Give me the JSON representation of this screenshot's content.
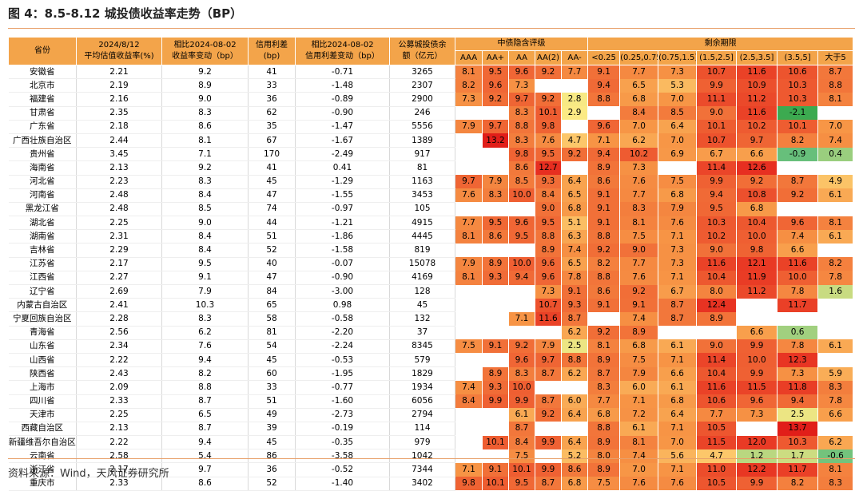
{
  "title": "图 4：8.5-8.12 城投债收益率走势（BP）",
  "source": "资料来源：Wind，天风证券研究所",
  "header": {
    "province": "省份",
    "avg_line1": "2024/8/12",
    "avg_line2": "平均估值收益率(%)",
    "chg_line1": "相比2024-08-02",
    "chg_line2": "收益率变动（bp）",
    "spread_line1": "信用利差",
    "spread_line2": "(bp)",
    "spread_chg_line1": "相比2024-08-02",
    "spread_chg_line2": "信用利差变动（bp）",
    "balance_line1": "公募城投债余",
    "balance_line2": "额（亿元）",
    "rating_group": "中债隐含评级",
    "rating_cols": [
      "AAA",
      "AA+",
      "AA",
      "AA(2)",
      "AA-"
    ],
    "term_group": "剩余期限",
    "term_cols": [
      "<0.25",
      "(0.25,0.75]",
      "(0.75,1.5]",
      "(1.5,2.5]",
      "(2.5,3.5]",
      "(3.5,5]",
      "大于5"
    ]
  },
  "rows": [
    {
      "province": "安徽省",
      "avg": "2.21",
      "chg": "9.2",
      "spread": "41",
      "spread_chg": "-0.71",
      "balance": "3265",
      "rating": [
        "8.1",
        "9.5",
        "9.6",
        "9.2",
        "7.7"
      ],
      "term": [
        "9.1",
        "7.7",
        "7.3",
        "10.7",
        "11.6",
        "10.6",
        "8.7"
      ]
    },
    {
      "province": "北京市",
      "avg": "2.19",
      "chg": "8.9",
      "spread": "33",
      "spread_chg": "-1.48",
      "balance": "2307",
      "rating": [
        "8.2",
        "9.6",
        "7.3",
        "",
        ""
      ],
      "term": [
        "9.4",
        "6.5",
        "5.3",
        "9.9",
        "10.9",
        "10.3",
        "8.8"
      ]
    },
    {
      "province": "福建省",
      "avg": "2.16",
      "chg": "9.0",
      "spread": "36",
      "spread_chg": "-0.89",
      "balance": "2900",
      "rating": [
        "7.3",
        "9.2",
        "9.7",
        "9.2",
        "2.8"
      ],
      "term": [
        "8.8",
        "6.8",
        "7.0",
        "11.1",
        "11.2",
        "10.3",
        "8.1"
      ]
    },
    {
      "province": "甘肃省",
      "avg": "2.35",
      "chg": "8.3",
      "spread": "62",
      "spread_chg": "-0.90",
      "balance": "246",
      "rating": [
        "",
        "",
        "8.3",
        "10.1",
        "2.9"
      ],
      "term": [
        "",
        "8.4",
        "8.5",
        "9.0",
        "11.6",
        "-2.1",
        ""
      ]
    },
    {
      "province": "广东省",
      "avg": "2.18",
      "chg": "8.6",
      "spread": "35",
      "spread_chg": "-1.47",
      "balance": "5556",
      "rating": [
        "7.9",
        "9.7",
        "8.8",
        "9.8",
        ""
      ],
      "term": [
        "9.6",
        "7.0",
        "6.4",
        "10.1",
        "10.2",
        "10.1",
        "7.0"
      ]
    },
    {
      "province": "广西壮族自治区",
      "avg": "2.44",
      "chg": "8.1",
      "spread": "67",
      "spread_chg": "-1.67",
      "balance": "1389",
      "rating": [
        "",
        "13.2",
        "8.3",
        "7.6",
        "4.7"
      ],
      "term": [
        "7.1",
        "6.2",
        "7.0",
        "10.7",
        "9.7",
        "8.2",
        "7.4"
      ]
    },
    {
      "province": "贵州省",
      "avg": "3.45",
      "chg": "7.1",
      "spread": "170",
      "spread_chg": "-2.49",
      "balance": "917",
      "rating": [
        "",
        "",
        "9.8",
        "9.5",
        "9.2"
      ],
      "term": [
        "9.4",
        "10.2",
        "6.9",
        "6.7",
        "6.6",
        "-0.9",
        "0.4"
      ]
    },
    {
      "province": "海南省",
      "avg": "2.13",
      "chg": "9.2",
      "spread": "41",
      "spread_chg": "0.41",
      "balance": "81",
      "rating": [
        "",
        "",
        "8.6",
        "12.7",
        ""
      ],
      "term": [
        "8.9",
        "7.3",
        "",
        "11.4",
        "12.6",
        "",
        ""
      ]
    },
    {
      "province": "河北省",
      "avg": "2.23",
      "chg": "8.3",
      "spread": "45",
      "spread_chg": "-1.29",
      "balance": "1163",
      "rating": [
        "9.7",
        "7.9",
        "8.5",
        "9.3",
        "6.4"
      ],
      "term": [
        "8.6",
        "7.6",
        "7.5",
        "9.9",
        "9.2",
        "8.7",
        "4.9"
      ]
    },
    {
      "province": "河南省",
      "avg": "2.48",
      "chg": "8.4",
      "spread": "47",
      "spread_chg": "-1.55",
      "balance": "3453",
      "rating": [
        "7.6",
        "8.3",
        "10.0",
        "8.4",
        "6.5"
      ],
      "term": [
        "9.1",
        "7.7",
        "6.8",
        "9.4",
        "10.8",
        "9.2",
        "6.1"
      ]
    },
    {
      "province": "黑龙江省",
      "avg": "2.48",
      "chg": "8.5",
      "spread": "74",
      "spread_chg": "-0.97",
      "balance": "105",
      "rating": [
        "",
        "",
        "",
        "9.0",
        "6.8"
      ],
      "term": [
        "9.1",
        "8.3",
        "7.9",
        "9.5",
        "6.8",
        "",
        ""
      ]
    },
    {
      "province": "湖北省",
      "avg": "2.25",
      "chg": "9.0",
      "spread": "44",
      "spread_chg": "-1.21",
      "balance": "4915",
      "rating": [
        "7.7",
        "9.5",
        "9.6",
        "9.5",
        "5.1"
      ],
      "term": [
        "9.1",
        "8.1",
        "7.6",
        "10.3",
        "10.4",
        "9.6",
        "8.1"
      ]
    },
    {
      "province": "湖南省",
      "avg": "2.31",
      "chg": "8.4",
      "spread": "51",
      "spread_chg": "-1.86",
      "balance": "4445",
      "rating": [
        "8.1",
        "8.6",
        "9.5",
        "8.8",
        "6.3"
      ],
      "term": [
        "8.8",
        "7.5",
        "7.1",
        "10.2",
        "10.0",
        "7.4",
        "6.1"
      ]
    },
    {
      "province": "吉林省",
      "avg": "2.29",
      "chg": "8.4",
      "spread": "52",
      "spread_chg": "-1.58",
      "balance": "819",
      "rating": [
        "",
        "",
        "",
        "8.9",
        "7.4"
      ],
      "term": [
        "9.2",
        "9.0",
        "7.3",
        "9.0",
        "9.8",
        "6.6",
        ""
      ]
    },
    {
      "province": "江苏省",
      "avg": "2.17",
      "chg": "9.5",
      "spread": "40",
      "spread_chg": "-0.07",
      "balance": "15078",
      "rating": [
        "7.9",
        "8.9",
        "10.0",
        "9.6",
        "6.5"
      ],
      "term": [
        "8.2",
        "7.7",
        "7.3",
        "11.6",
        "12.1",
        "11.6",
        "8.2"
      ]
    },
    {
      "province": "江西省",
      "avg": "2.27",
      "chg": "9.1",
      "spread": "47",
      "spread_chg": "-0.90",
      "balance": "4169",
      "rating": [
        "8.1",
        "9.3",
        "9.4",
        "9.6",
        "7.8"
      ],
      "term": [
        "8.8",
        "7.6",
        "7.1",
        "10.4",
        "11.9",
        "10.0",
        "7.8"
      ]
    },
    {
      "province": "辽宁省",
      "avg": "2.69",
      "chg": "7.9",
      "spread": "84",
      "spread_chg": "-3.00",
      "balance": "128",
      "rating": [
        "",
        "",
        "",
        "7.3",
        "9.1"
      ],
      "term": [
        "8.6",
        "9.2",
        "6.7",
        "8.0",
        "11.2",
        "7.8",
        "1.6"
      ]
    },
    {
      "province": "内蒙古自治区",
      "avg": "2.41",
      "chg": "10.3",
      "spread": "65",
      "spread_chg": "0.98",
      "balance": "45",
      "rating": [
        "",
        "",
        "",
        "10.7",
        "9.3"
      ],
      "term": [
        "9.1",
        "9.1",
        "8.7",
        "12.4",
        "",
        "11.7",
        ""
      ]
    },
    {
      "province": "宁夏回族自治区",
      "avg": "2.28",
      "chg": "8.3",
      "spread": "58",
      "spread_chg": "-0.58",
      "balance": "132",
      "rating": [
        "",
        "",
        "7.1",
        "11.6",
        "8.7"
      ],
      "term": [
        "",
        "7.4",
        "8.7",
        "8.9",
        "",
        "",
        ""
      ]
    },
    {
      "province": "青海省",
      "avg": "2.56",
      "chg": "6.2",
      "spread": "81",
      "spread_chg": "-2.20",
      "balance": "37",
      "rating": [
        "",
        "",
        "",
        "",
        "6.2"
      ],
      "term": [
        "9.2",
        "8.9",
        "",
        "",
        "6.6",
        "0.6",
        ""
      ]
    },
    {
      "province": "山东省",
      "avg": "2.34",
      "chg": "7.6",
      "spread": "54",
      "spread_chg": "-2.24",
      "balance": "8345",
      "rating": [
        "7.5",
        "9.1",
        "9.2",
        "7.9",
        "2.5"
      ],
      "term": [
        "8.1",
        "6.8",
        "6.1",
        "9.0",
        "9.9",
        "7.8",
        "6.1"
      ]
    },
    {
      "province": "山西省",
      "avg": "2.22",
      "chg": "9.4",
      "spread": "45",
      "spread_chg": "-0.53",
      "balance": "579",
      "rating": [
        "",
        "",
        "9.6",
        "9.7",
        "8.8"
      ],
      "term": [
        "8.9",
        "7.5",
        "7.1",
        "11.4",
        "10.0",
        "12.3",
        ""
      ]
    },
    {
      "province": "陕西省",
      "avg": "2.43",
      "chg": "8.2",
      "spread": "60",
      "spread_chg": "-1.95",
      "balance": "1829",
      "rating": [
        "",
        "8.9",
        "8.3",
        "8.7",
        "6.2"
      ],
      "term": [
        "8.7",
        "7.9",
        "6.6",
        "10.4",
        "9.9",
        "7.3",
        "5.9"
      ]
    },
    {
      "province": "上海市",
      "avg": "2.09",
      "chg": "8.8",
      "spread": "33",
      "spread_chg": "-0.77",
      "balance": "1934",
      "rating": [
        "7.4",
        "9.3",
        "10.0",
        "",
        ""
      ],
      "term": [
        "8.3",
        "6.0",
        "6.1",
        "11.6",
        "11.5",
        "11.8",
        "8.3"
      ]
    },
    {
      "province": "四川省",
      "avg": "2.33",
      "chg": "8.7",
      "spread": "51",
      "spread_chg": "-1.60",
      "balance": "6056",
      "rating": [
        "8.4",
        "9.9",
        "9.9",
        "8.7",
        "6.0"
      ],
      "term": [
        "7.7",
        "7.1",
        "6.8",
        "10.6",
        "9.6",
        "9.4",
        "7.8"
      ]
    },
    {
      "province": "天津市",
      "avg": "2.25",
      "chg": "6.5",
      "spread": "49",
      "spread_chg": "-2.73",
      "balance": "2794",
      "rating": [
        "",
        "",
        "6.1",
        "9.2",
        "6.4"
      ],
      "term": [
        "6.8",
        "7.2",
        "6.4",
        "7.7",
        "7.3",
        "2.5",
        "6.6"
      ]
    },
    {
      "province": "西藏自治区",
      "avg": "2.13",
      "chg": "8.7",
      "spread": "39",
      "spread_chg": "-0.19",
      "balance": "114",
      "rating": [
        "",
        "",
        "8.7",
        "",
        ""
      ],
      "term": [
        "8.8",
        "6.1",
        "7.1",
        "10.5",
        "",
        "13.7",
        ""
      ]
    },
    {
      "province": "新疆维吾尔自治区",
      "avg": "2.22",
      "chg": "9.4",
      "spread": "45",
      "spread_chg": "-0.35",
      "balance": "979",
      "rating": [
        "",
        "10.1",
        "8.4",
        "9.9",
        "6.4"
      ],
      "term": [
        "8.9",
        "8.1",
        "7.0",
        "11.5",
        "12.0",
        "10.3",
        "6.2"
      ]
    },
    {
      "province": "云南省",
      "avg": "2.58",
      "chg": "5.4",
      "spread": "86",
      "spread_chg": "-3.58",
      "balance": "1042",
      "rating": [
        "",
        "",
        "7.5",
        "",
        "5.2"
      ],
      "term": [
        "8.0",
        "7.4",
        "5.6",
        "4.7",
        "1.2",
        "1.7",
        "-0.6"
      ]
    },
    {
      "province": "浙江省",
      "avg": "2.17",
      "chg": "9.7",
      "spread": "36",
      "spread_chg": "-0.52",
      "balance": "7344",
      "rating": [
        "7.1",
        "9.1",
        "10.1",
        "9.9",
        "8.6"
      ],
      "term": [
        "8.9",
        "7.0",
        "7.1",
        "11.0",
        "12.2",
        "11.7",
        "8.1"
      ]
    },
    {
      "province": "重庆市",
      "avg": "2.33",
      "chg": "8.6",
      "spread": "52",
      "spread_chg": "-1.40",
      "balance": "3402",
      "rating": [
        "9.8",
        "10.1",
        "9.5",
        "8.7",
        "6.8"
      ],
      "term": [
        "7.5",
        "7.6",
        "7.6",
        "10.5",
        "9.9",
        "8.2",
        "8.3"
      ]
    }
  ]
}
